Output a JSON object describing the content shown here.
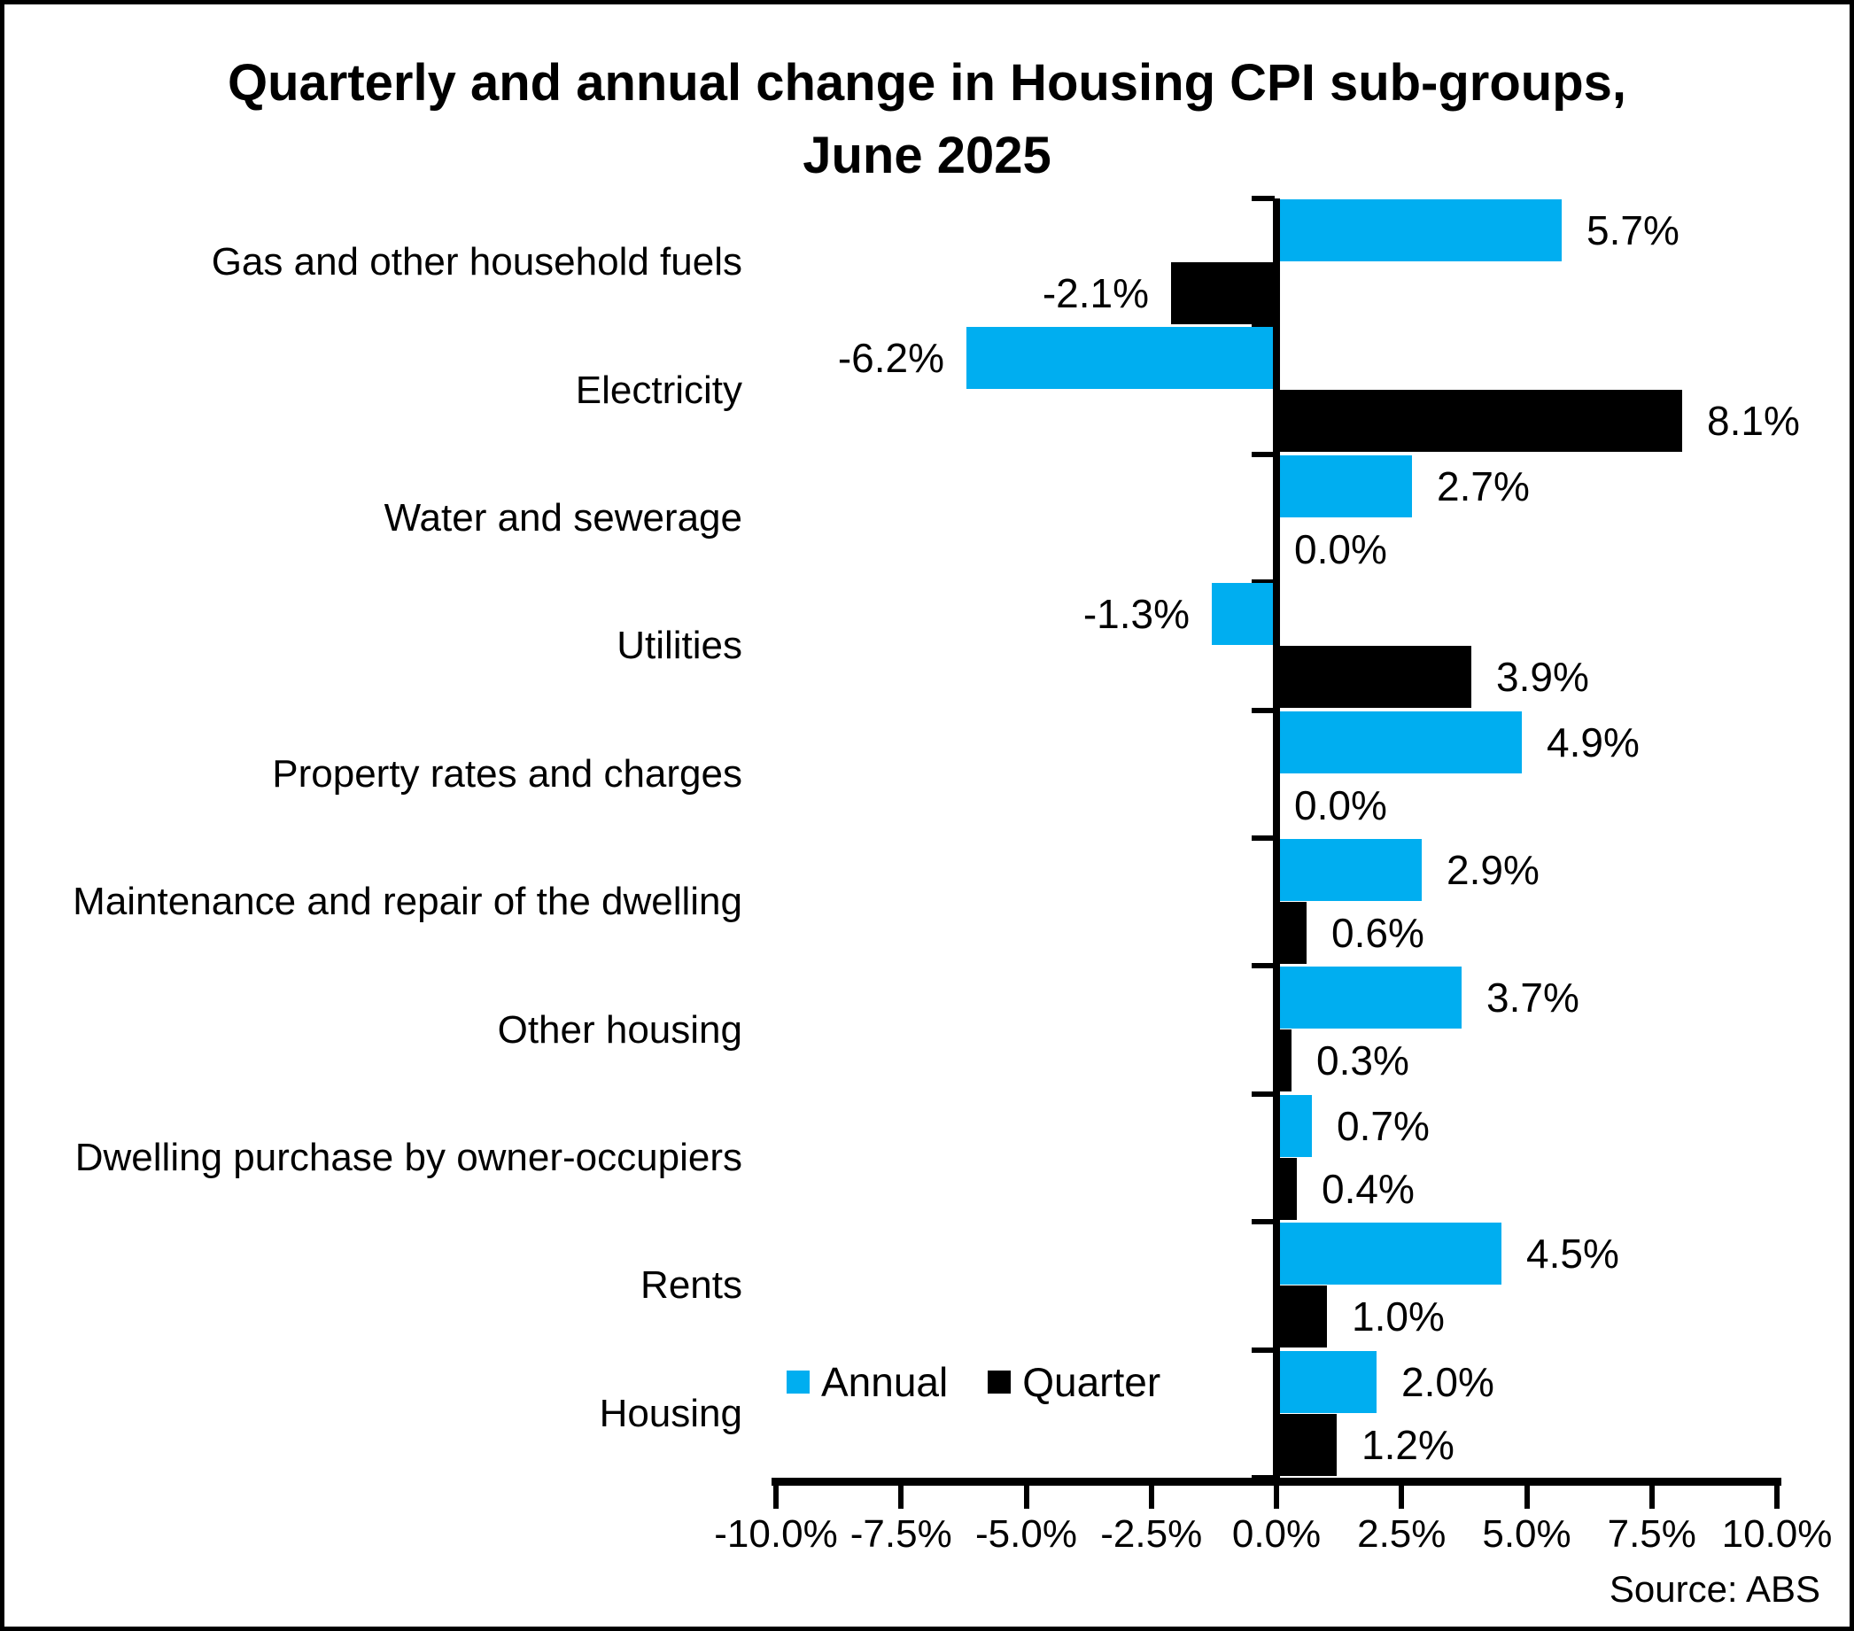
{
  "title": {
    "line1": "Quarterly and annual change in Housing CPI sub-groups,",
    "line2": "June 2025"
  },
  "legend": {
    "items": [
      {
        "label": "Annual",
        "color": "#00AEF0"
      },
      {
        "label": "Quarter",
        "color": "#000000"
      }
    ]
  },
  "source": "Source: ABS",
  "colors": {
    "annual": "#00AEF0",
    "quarter": "#000000",
    "axis": "#000000",
    "background": "#ffffff"
  },
  "chart_data": {
    "type": "bar",
    "orientation": "horizontal",
    "title": "Quarterly and annual change in Housing CPI sub-groups, June 2025",
    "categories": [
      "Gas and other household fuels",
      "Electricity",
      "Water and sewerage",
      "Utilities",
      "Property rates and charges",
      "Maintenance and repair of the dwelling",
      "Other housing",
      "Dwelling purchase by owner-occupiers",
      "Rents",
      "Housing"
    ],
    "series": [
      {
        "name": "Annual",
        "color": "#00AEF0",
        "values": [
          5.7,
          -6.2,
          2.7,
          -1.3,
          4.9,
          2.9,
          3.7,
          0.7,
          4.5,
          2.0
        ]
      },
      {
        "name": "Quarter",
        "color": "#000000",
        "values": [
          -2.1,
          8.1,
          0.0,
          3.9,
          0.0,
          0.6,
          0.3,
          0.4,
          1.0,
          1.2
        ]
      }
    ],
    "data_labels": {
      "Annual": [
        "5.7%",
        "-6.2%",
        "2.7%",
        "-1.3%",
        "4.9%",
        "2.9%",
        "3.7%",
        "0.7%",
        "4.5%",
        "2.0%"
      ],
      "Quarter": [
        "-2.1%",
        "8.1%",
        "0.0%",
        "3.9%",
        "0.0%",
        "0.6%",
        "0.3%",
        "0.4%",
        "1.0%",
        "1.2%"
      ]
    },
    "xlim": [
      -10,
      10
    ],
    "x_tick_labels": [
      "-10.0%",
      "-7.5%",
      "-5.0%",
      "-2.5%",
      "0.0%",
      "2.5%",
      "5.0%",
      "7.5%",
      "10.0%"
    ],
    "grid": false,
    "legend_position": "inside-bottom-left",
    "source": "Source: ABS"
  }
}
